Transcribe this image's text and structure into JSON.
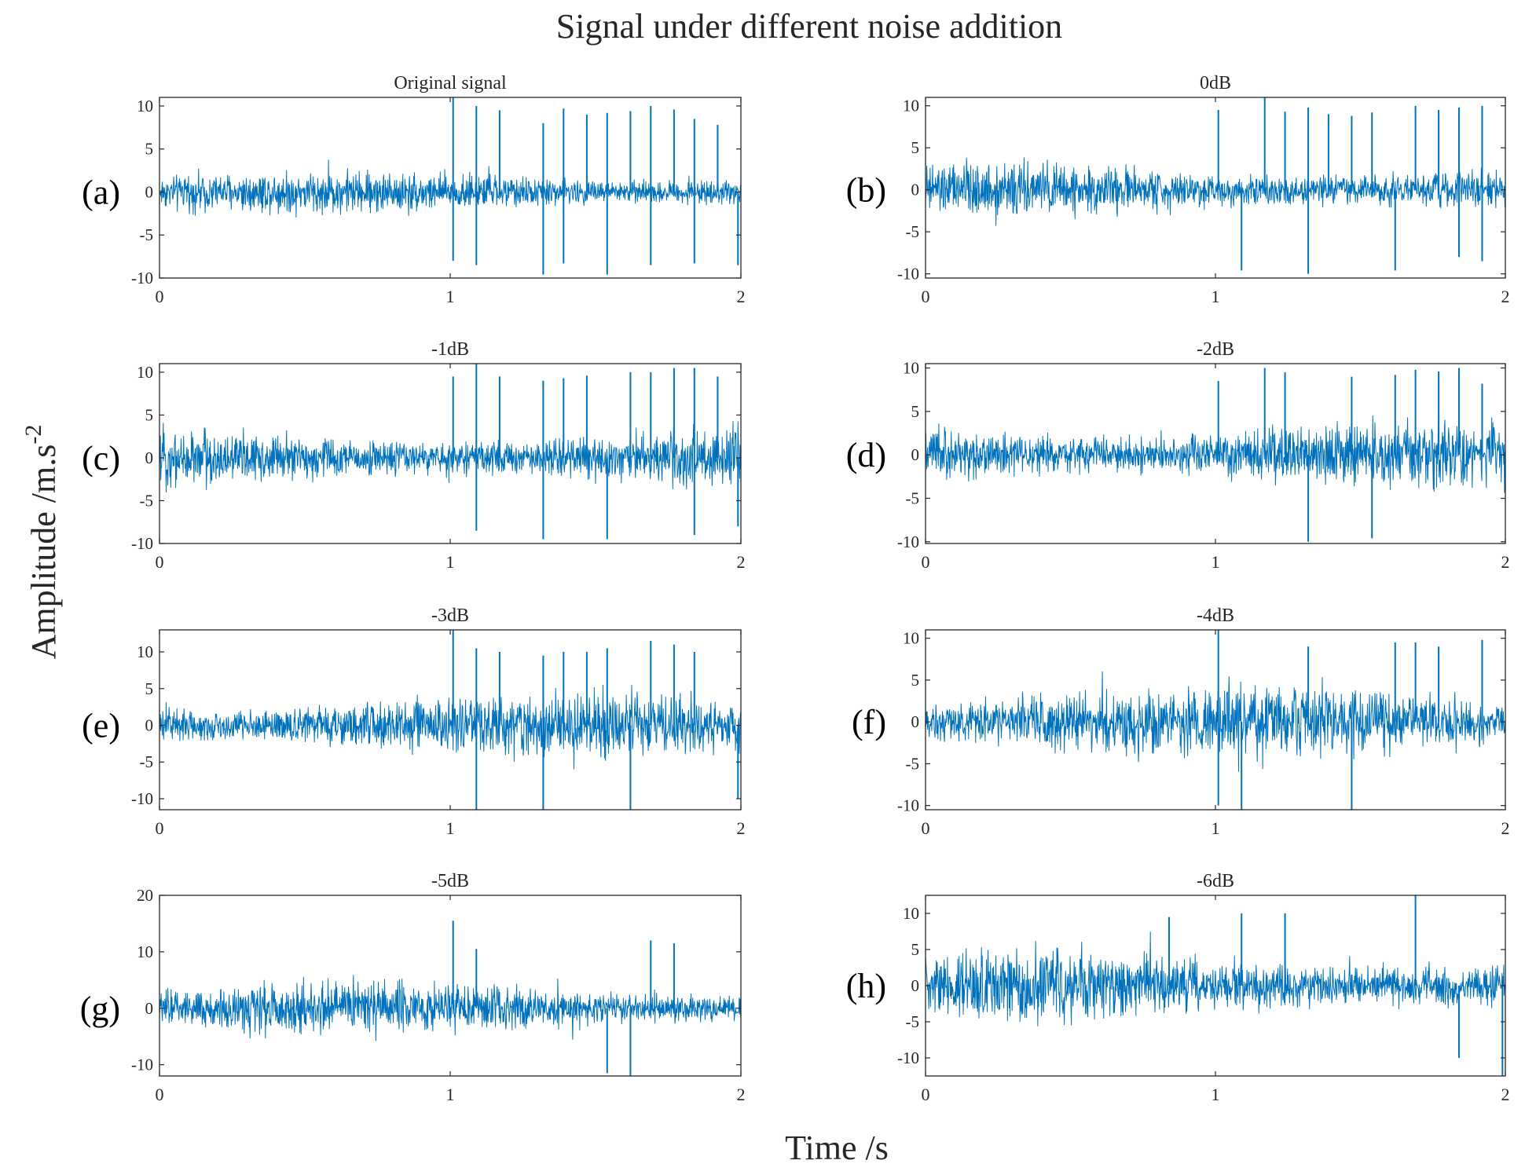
{
  "figure": {
    "title": "Signal under different noise addition",
    "xlabel": "Time /s",
    "ylabel_base": "Amplitude /m.s",
    "ylabel_exponent": "-2",
    "line_color": "#0072BD"
  },
  "chart_data": [
    {
      "type": "line",
      "panel": "(a)",
      "title": "Original signal",
      "xlim": [
        0,
        2
      ],
      "xticks": [
        "0",
        "1",
        "2"
      ],
      "ylim": [
        -10,
        11
      ],
      "yticks": [
        {
          "v": 10,
          "t": "10"
        },
        {
          "v": 5,
          "t": "5"
        },
        {
          "v": 0,
          "t": "0"
        },
        {
          "v": -5,
          "t": "-5"
        },
        {
          "v": -10,
          "t": "-10"
        }
      ],
      "noise_amplitude": 3.5,
      "spikes": [
        {
          "t": 1.01,
          "v": 11
        },
        {
          "t": 1.01,
          "v": -8
        },
        {
          "t": 1.09,
          "v": 10
        },
        {
          "t": 1.09,
          "v": -8.5
        },
        {
          "t": 1.17,
          "v": 9.5
        },
        {
          "t": 1.32,
          "v": 8
        },
        {
          "t": 1.32,
          "v": -9.6
        },
        {
          "t": 1.39,
          "v": 9.7
        },
        {
          "t": 1.39,
          "v": -8.3
        },
        {
          "t": 1.47,
          "v": 9
        },
        {
          "t": 1.54,
          "v": 9.2
        },
        {
          "t": 1.54,
          "v": -9.6
        },
        {
          "t": 1.62,
          "v": 9.4
        },
        {
          "t": 1.69,
          "v": 10
        },
        {
          "t": 1.69,
          "v": -8.5
        },
        {
          "t": 1.77,
          "v": 9.6
        },
        {
          "t": 1.84,
          "v": 8.5
        },
        {
          "t": 1.84,
          "v": -8.3
        },
        {
          "t": 1.92,
          "v": 7.8
        },
        {
          "t": 1.99,
          "v": -8.5
        }
      ]
    },
    {
      "type": "line",
      "panel": "(b)",
      "title": "0dB",
      "xlim": [
        0,
        2
      ],
      "xticks": [
        "0",
        "1",
        "2"
      ],
      "ylim": [
        -10.5,
        11
      ],
      "yticks": [
        {
          "v": 10,
          "t": "10"
        },
        {
          "v": 5,
          "t": "5"
        },
        {
          "v": 0,
          "t": "0"
        },
        {
          "v": -5,
          "t": "-5"
        },
        {
          "v": -10,
          "t": "-10"
        }
      ],
      "noise_amplitude": 4.5,
      "spikes": [
        {
          "t": 1.01,
          "v": 9.5
        },
        {
          "t": 1.09,
          "v": -9.6
        },
        {
          "t": 1.17,
          "v": 11
        },
        {
          "t": 1.24,
          "v": 9.3
        },
        {
          "t": 1.32,
          "v": 9.8
        },
        {
          "t": 1.32,
          "v": -10
        },
        {
          "t": 1.39,
          "v": 9
        },
        {
          "t": 1.47,
          "v": 8.8
        },
        {
          "t": 1.54,
          "v": 9.2
        },
        {
          "t": 1.62,
          "v": -9.6
        },
        {
          "t": 1.69,
          "v": 10
        },
        {
          "t": 1.77,
          "v": 9.5
        },
        {
          "t": 1.84,
          "v": 9.8
        },
        {
          "t": 1.84,
          "v": -8
        },
        {
          "t": 1.92,
          "v": 10
        },
        {
          "t": 1.92,
          "v": -8.5
        }
      ]
    },
    {
      "type": "line",
      "panel": "(c)",
      "title": "-1dB",
      "xlim": [
        0,
        2
      ],
      "xticks": [
        "0",
        "1",
        "2"
      ],
      "ylim": [
        -10,
        11
      ],
      "yticks": [
        {
          "v": 10,
          "t": "10"
        },
        {
          "v": 5,
          "t": "5"
        },
        {
          "v": 0,
          "t": "0"
        },
        {
          "v": -5,
          "t": "-5"
        },
        {
          "v": -10,
          "t": "-10"
        }
      ],
      "noise_amplitude": 5,
      "spikes": [
        {
          "t": 1.01,
          "v": 9.5
        },
        {
          "t": 1.09,
          "v": 11
        },
        {
          "t": 1.09,
          "v": -8.5
        },
        {
          "t": 1.17,
          "v": 9.5
        },
        {
          "t": 1.32,
          "v": 9
        },
        {
          "t": 1.32,
          "v": -9.5
        },
        {
          "t": 1.39,
          "v": 9.3
        },
        {
          "t": 1.47,
          "v": 9.6
        },
        {
          "t": 1.54,
          "v": -9.5
        },
        {
          "t": 1.62,
          "v": 10
        },
        {
          "t": 1.69,
          "v": 10
        },
        {
          "t": 1.77,
          "v": 10.5
        },
        {
          "t": 1.84,
          "v": 10.5
        },
        {
          "t": 1.84,
          "v": -9
        },
        {
          "t": 1.92,
          "v": 9.5
        },
        {
          "t": 1.99,
          "v": -8
        }
      ]
    },
    {
      "type": "line",
      "panel": "(d)",
      "title": "-2dB",
      "xlim": [
        0,
        2
      ],
      "xticks": [
        "0",
        "1",
        "2"
      ],
      "ylim": [
        -10.2,
        10.5
      ],
      "yticks": [
        {
          "v": 10,
          "t": "10"
        },
        {
          "v": 5,
          "t": "5"
        },
        {
          "v": 0,
          "t": "0"
        },
        {
          "v": -5,
          "t": "-5"
        },
        {
          "v": -10,
          "t": "-10"
        }
      ],
      "noise_amplitude": 5.5,
      "spikes": [
        {
          "t": 1.01,
          "v": 8.5
        },
        {
          "t": 1.17,
          "v": 10
        },
        {
          "t": 1.24,
          "v": 9.5
        },
        {
          "t": 1.32,
          "v": -10
        },
        {
          "t": 1.47,
          "v": 9
        },
        {
          "t": 1.54,
          "v": -9.6
        },
        {
          "t": 1.62,
          "v": 9.2
        },
        {
          "t": 1.69,
          "v": 9.8
        },
        {
          "t": 1.77,
          "v": 9.6
        },
        {
          "t": 1.84,
          "v": 10
        },
        {
          "t": 1.92,
          "v": 8.2
        }
      ]
    },
    {
      "type": "line",
      "panel": "(e)",
      "title": "-3dB",
      "xlim": [
        0,
        2
      ],
      "xticks": [
        "0",
        "1",
        "2"
      ],
      "ylim": [
        -11.5,
        13
      ],
      "yticks": [
        {
          "v": 10,
          "t": "10"
        },
        {
          "v": 5,
          "t": "5"
        },
        {
          "v": 0,
          "t": "0"
        },
        {
          "v": -5,
          "t": "-5"
        },
        {
          "v": -10,
          "t": "-10"
        }
      ],
      "noise_amplitude": 6,
      "spikes": [
        {
          "t": 1.01,
          "v": 13
        },
        {
          "t": 1.09,
          "v": 10.5
        },
        {
          "t": 1.09,
          "v": -11.5
        },
        {
          "t": 1.17,
          "v": 10
        },
        {
          "t": 1.32,
          "v": 9.5
        },
        {
          "t": 1.32,
          "v": -11.5
        },
        {
          "t": 1.39,
          "v": 10
        },
        {
          "t": 1.47,
          "v": 10
        },
        {
          "t": 1.54,
          "v": 10.5
        },
        {
          "t": 1.62,
          "v": -11.5
        },
        {
          "t": 1.69,
          "v": 11.5
        },
        {
          "t": 1.77,
          "v": 11
        },
        {
          "t": 1.84,
          "v": 10
        },
        {
          "t": 1.99,
          "v": -10
        }
      ]
    },
    {
      "type": "line",
      "panel": "(f)",
      "title": "-4dB",
      "xlim": [
        0,
        2
      ],
      "xticks": [
        "0",
        "1",
        "2"
      ],
      "ylim": [
        -10.5,
        11
      ],
      "yticks": [
        {
          "v": 10,
          "t": "10"
        },
        {
          "v": 5,
          "t": "5"
        },
        {
          "v": 0,
          "t": "0"
        },
        {
          "v": -5,
          "t": "-5"
        },
        {
          "v": -10,
          "t": "-10"
        }
      ],
      "noise_amplitude": 6.2,
      "spikes": [
        {
          "t": 1.01,
          "v": 11
        },
        {
          "t": 1.01,
          "v": -10
        },
        {
          "t": 1.09,
          "v": -10.5
        },
        {
          "t": 1.32,
          "v": 9
        },
        {
          "t": 1.47,
          "v": -10.5
        },
        {
          "t": 1.62,
          "v": 9.5
        },
        {
          "t": 1.69,
          "v": 9.5
        },
        {
          "t": 1.77,
          "v": 9
        },
        {
          "t": 1.92,
          "v": 9.8
        }
      ]
    },
    {
      "type": "line",
      "panel": "(g)",
      "title": "-5dB",
      "xlim": [
        0,
        2
      ],
      "xticks": [
        "0",
        "1",
        "2"
      ],
      "ylim": [
        -12,
        20
      ],
      "yticks": [
        {
          "v": 20,
          "t": "20"
        },
        {
          "v": 10,
          "t": "10"
        },
        {
          "v": 0,
          "t": "0"
        },
        {
          "v": -10,
          "t": "-10"
        }
      ],
      "noise_amplitude": 6.5,
      "spikes": [
        {
          "t": 1.01,
          "v": 15.5
        },
        {
          "t": 1.09,
          "v": 10.5
        },
        {
          "t": 1.54,
          "v": -11.5
        },
        {
          "t": 1.62,
          "v": -12
        },
        {
          "t": 1.69,
          "v": 12
        },
        {
          "t": 1.77,
          "v": 11.5
        }
      ]
    },
    {
      "type": "line",
      "panel": "(h)",
      "title": "-6dB",
      "xlim": [
        0,
        2
      ],
      "xticks": [
        "0",
        "1",
        "2"
      ],
      "ylim": [
        -12.5,
        12.5
      ],
      "yticks": [
        {
          "v": 10,
          "t": "10"
        },
        {
          "v": 5,
          "t": "5"
        },
        {
          "v": 0,
          "t": "0"
        },
        {
          "v": -5,
          "t": "-5"
        },
        {
          "v": -10,
          "t": "-10"
        }
      ],
      "noise_amplitude": 7,
      "spikes": [
        {
          "t": 0.84,
          "v": 9.5
        },
        {
          "t": 1.09,
          "v": 10
        },
        {
          "t": 1.24,
          "v": 10
        },
        {
          "t": 1.69,
          "v": 12.5
        },
        {
          "t": 1.84,
          "v": -10
        },
        {
          "t": 1.99,
          "v": -12.5
        }
      ]
    }
  ]
}
